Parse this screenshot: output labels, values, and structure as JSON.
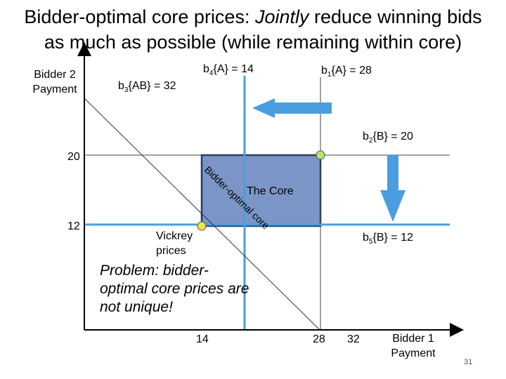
{
  "slide": {
    "title_line1_prefix": "Bidder-optimal core prices: ",
    "title_line1_emph": "Jointly",
    "title_line1_suffix": " reduce winning bids",
    "title_line2": "as much as possible (while remaining within core)",
    "slide_number": "31"
  },
  "axes": {
    "y_label": "Bidder 2 Payment",
    "x_label": "Bidder 1 Payment",
    "y_ticks": [
      "20",
      "12"
    ],
    "x_ticks": [
      "14",
      "28",
      "32"
    ]
  },
  "constraints": {
    "b4": {
      "base": "b",
      "sub": "4",
      "rest": "{A} = 14"
    },
    "b1": {
      "base": "b",
      "sub": "1",
      "rest": "{A} = 28"
    },
    "b3": {
      "base": "b",
      "sub": "3",
      "rest": "{AB} = 32"
    },
    "b2": {
      "base": "b",
      "sub": "2",
      "rest": "{B} = 20"
    },
    "b5": {
      "base": "b",
      "sub": "5",
      "rest": "{B} = 12"
    }
  },
  "annotations": {
    "core_label": "The Core",
    "bidder_optimal_label": "Bidder-optimal core",
    "vickrey_label": "Vickrey prices",
    "problem_text": "Problem: bidder-optimal core prices are not unique!"
  },
  "colors": {
    "blue_line": "#4a9ee0",
    "core_fill": "#7b96c6",
    "core_border": "#1f3a6e",
    "arrow_blue": "#4a9ee0",
    "point_fill": "#b6e36d",
    "point_vickrey": "#f4de4a"
  }
}
